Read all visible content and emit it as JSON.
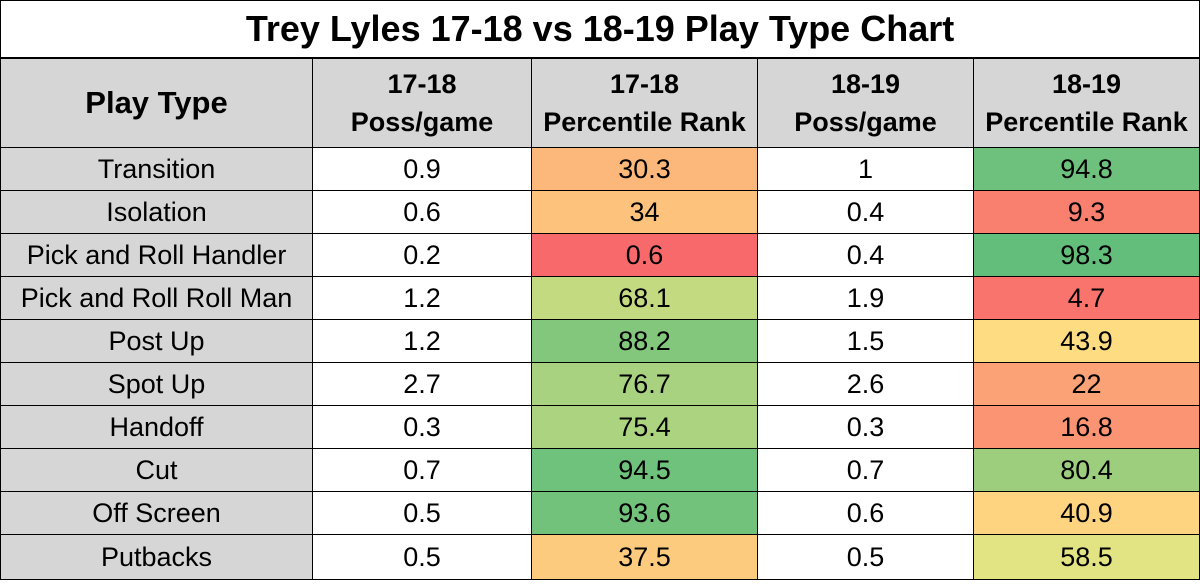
{
  "chart_data": {
    "type": "table",
    "title": "Trey Lyles 17-18 vs 18-19 Play Type Chart",
    "columns": [
      {
        "line1": "Play Type",
        "line2": ""
      },
      {
        "line1": "17-18",
        "line2": "Poss/game"
      },
      {
        "line1": "17-18",
        "line2": "Percentile Rank"
      },
      {
        "line1": "18-19",
        "line2": "Poss/game"
      },
      {
        "line1": "18-19",
        "line2": "Percentile Rank"
      }
    ],
    "rows": [
      {
        "play": "Transition",
        "poss_1718": "0.9",
        "rank_1718": "30.3",
        "poss_1819": "1",
        "rank_1819": "94.8"
      },
      {
        "play": "Isolation",
        "poss_1718": "0.6",
        "rank_1718": "34",
        "poss_1819": "0.4",
        "rank_1819": "9.3"
      },
      {
        "play": "Pick and Roll Handler",
        "poss_1718": "0.2",
        "rank_1718": "0.6",
        "poss_1819": "0.4",
        "rank_1819": "98.3"
      },
      {
        "play": "Pick and Roll Roll Man",
        "poss_1718": "1.2",
        "rank_1718": "68.1",
        "poss_1819": "1.9",
        "rank_1819": "4.7"
      },
      {
        "play": "Post Up",
        "poss_1718": "1.2",
        "rank_1718": "88.2",
        "poss_1819": "1.5",
        "rank_1819": "43.9"
      },
      {
        "play": "Spot Up",
        "poss_1718": "2.7",
        "rank_1718": "76.7",
        "poss_1819": "2.6",
        "rank_1819": "22"
      },
      {
        "play": "Handoff",
        "poss_1718": "0.3",
        "rank_1718": "75.4",
        "poss_1819": "0.3",
        "rank_1819": "16.8"
      },
      {
        "play": "Cut",
        "poss_1718": "0.7",
        "rank_1718": "94.5",
        "poss_1819": "0.7",
        "rank_1819": "80.4"
      },
      {
        "play": "Off Screen",
        "poss_1718": "0.5",
        "rank_1718": "93.6",
        "poss_1819": "0.6",
        "rank_1819": "40.9"
      },
      {
        "play": "Putbacks",
        "poss_1718": "0.5",
        "rank_1718": "37.5",
        "poss_1819": "0.5",
        "rank_1819": "58.5"
      }
    ],
    "color_scale": {
      "low": "#f8696b",
      "mid": "#ffeb84",
      "high": "#63be7b"
    },
    "header_fill": "#d6d6d6"
  }
}
